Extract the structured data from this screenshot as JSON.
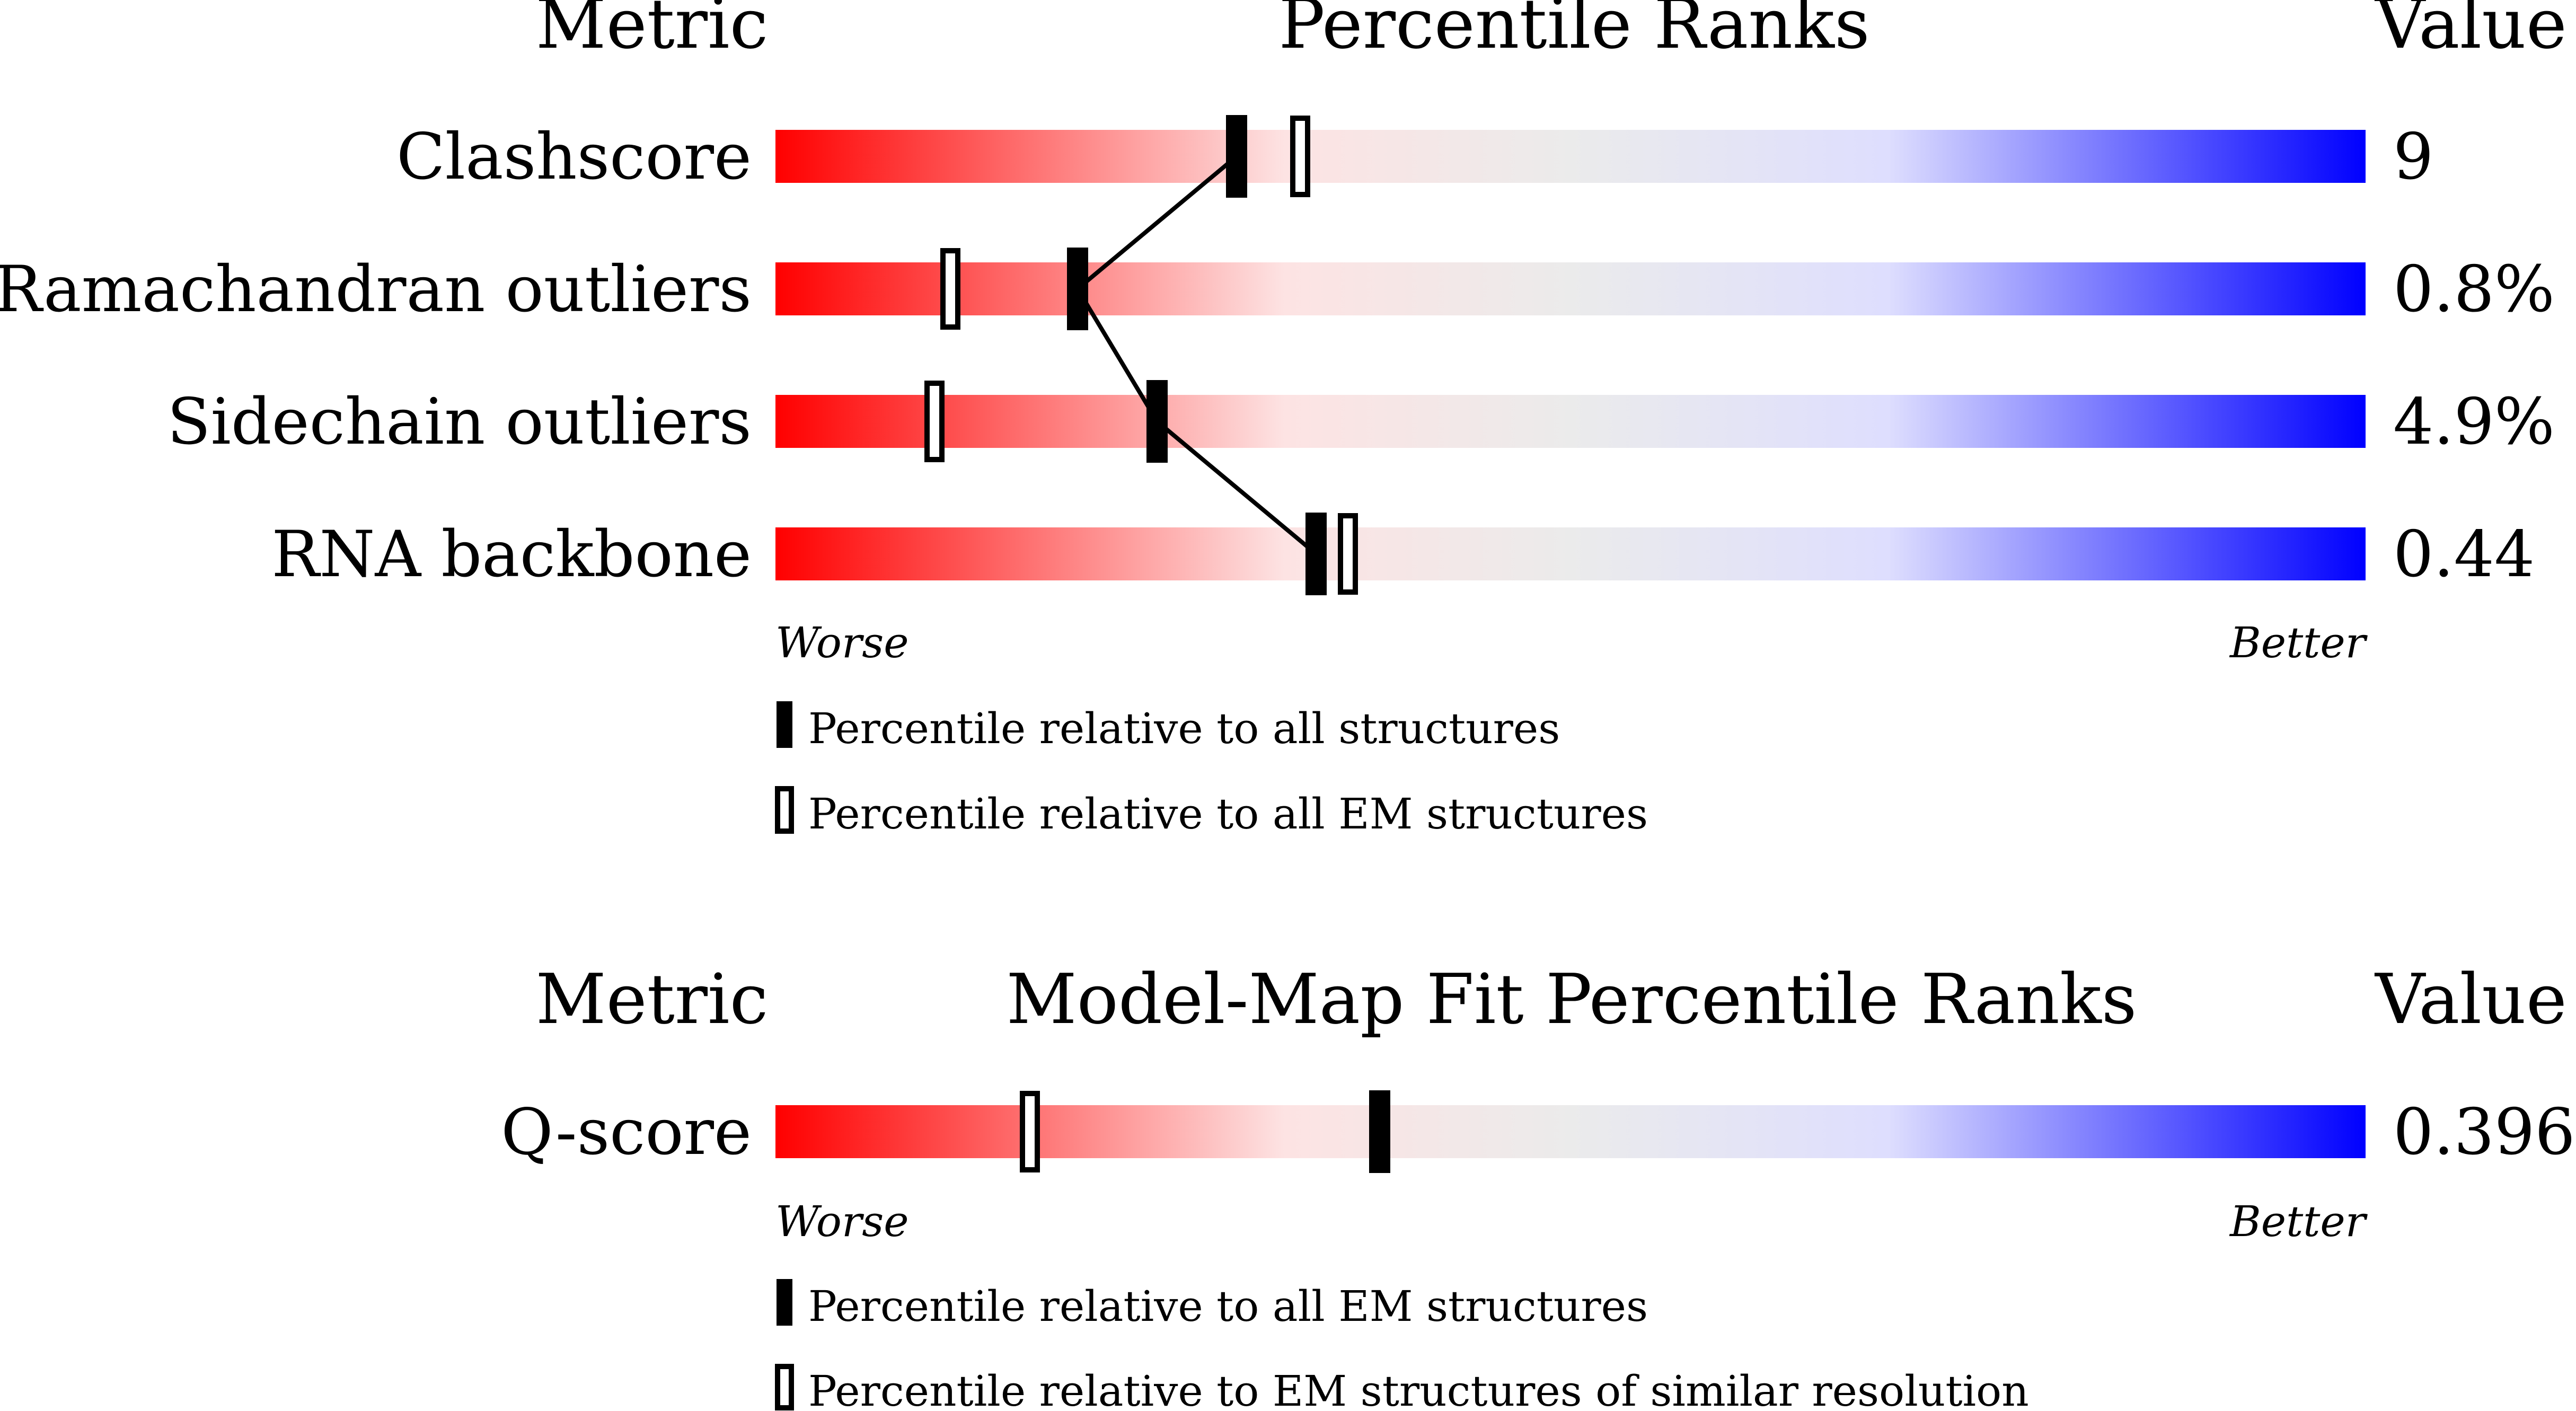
{
  "chart_data": [
    {
      "type": "percentile-bars",
      "headers": {
        "metric": "Metric",
        "title": "Percentile Ranks",
        "value": "Value"
      },
      "xlim": [
        0,
        100
      ],
      "rows": [
        {
          "label": "Clashscore",
          "value": "9",
          "percentile_all": 29,
          "percentile_em": 33
        },
        {
          "label": "Ramachandran outliers",
          "value": "0.8%",
          "percentile_all": 19,
          "percentile_em": 11
        },
        {
          "label": "Sidechain outliers",
          "value": "4.9%",
          "percentile_all": 24,
          "percentile_em": 10
        },
        {
          "label": "RNA backbone",
          "value": "0.44",
          "percentile_all": 34,
          "percentile_em": 36
        }
      ],
      "worse_label": "Worse",
      "better_label": "Better",
      "legend": [
        {
          "marker": "filled",
          "text": "Percentile relative to all structures"
        },
        {
          "marker": "open",
          "text": "Percentile relative to all EM structures"
        }
      ]
    },
    {
      "type": "percentile-bars",
      "headers": {
        "metric": "Metric",
        "title": "Model-Map Fit Percentile Ranks",
        "value": "Value"
      },
      "xlim": [
        0,
        100
      ],
      "rows": [
        {
          "label": "Q-score",
          "value": "0.396",
          "percentile_all": 38,
          "percentile_em": 16
        }
      ],
      "worse_label": "Worse",
      "better_label": "Better",
      "legend": [
        {
          "marker": "filled",
          "text": "Percentile relative to all EM structures"
        },
        {
          "marker": "open",
          "text": "Percentile relative to EM structures of similar resolution"
        }
      ]
    }
  ],
  "colors": {
    "worse": "#ff0000",
    "mid_warm": "#fde3e3",
    "neutral": "#ebebeb",
    "mid_cool": "#dedefe",
    "better": "#0000ff",
    "marker": "#000000"
  }
}
